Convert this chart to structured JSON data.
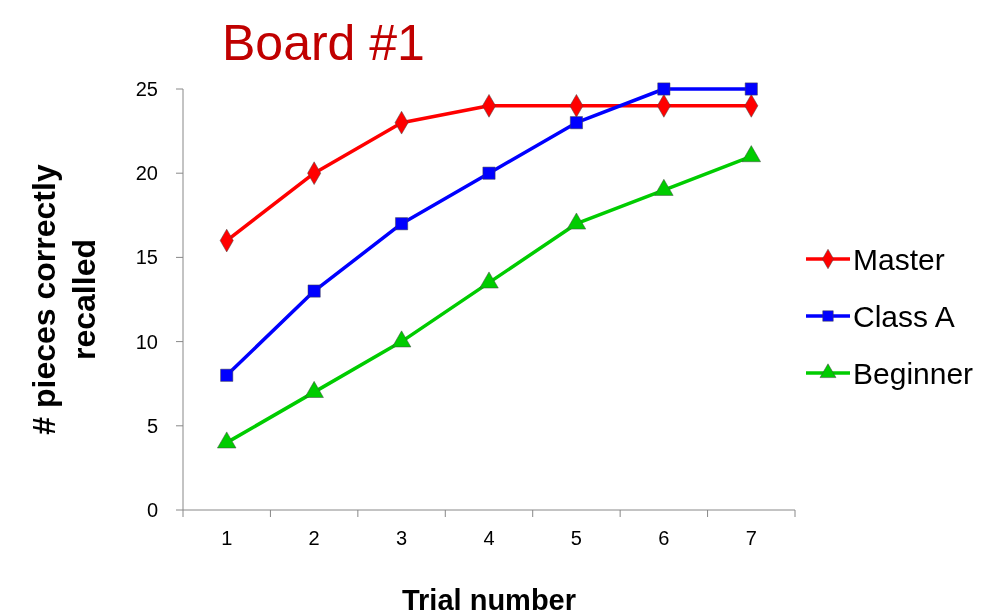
{
  "chart_data": {
    "type": "line",
    "title": "Board #1",
    "xlabel": "Trial number",
    "ylabel": "# pieces correctly recalled",
    "categories": [
      "1",
      "2",
      "3",
      "4",
      "5",
      "6",
      "7"
    ],
    "series": [
      {
        "name": "Master",
        "color": "#ff0000",
        "marker": "diamond",
        "values": [
          16,
          20,
          23,
          24,
          24,
          24,
          24
        ]
      },
      {
        "name": "Class A",
        "color": "#0000ff",
        "marker": "square",
        "values": [
          8,
          13,
          17,
          20,
          23,
          25,
          25
        ]
      },
      {
        "name": "Beginner",
        "color": "#00cc00",
        "marker": "triangle",
        "values": [
          4,
          7,
          10,
          13.5,
          17,
          19,
          21
        ]
      }
    ],
    "ylim": [
      0,
      25
    ],
    "yticks": [
      0,
      5,
      10,
      15,
      20,
      25
    ],
    "grid": false,
    "legend": "right"
  }
}
